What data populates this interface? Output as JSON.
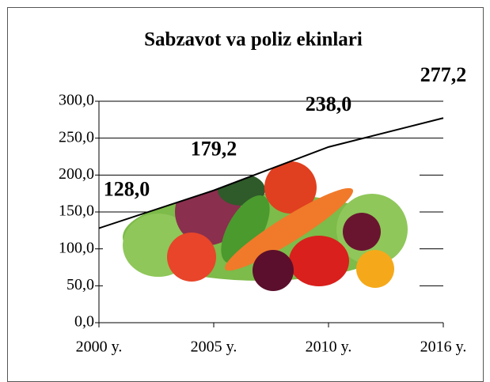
{
  "chart_data": {
    "type": "line",
    "title": "Sabzavot va poliz ekinlari",
    "categories": [
      "2000 y.",
      "2005 y.",
      "2010 y.",
      "2016 y."
    ],
    "values": [
      128.0,
      179.2,
      238.0,
      277.2
    ],
    "value_labels": [
      "128,0",
      "179,2",
      "238,0",
      "277,2"
    ],
    "color": "#000000",
    "ylim": [
      0,
      300
    ],
    "yticks": [
      {
        "value": 0,
        "label": "0,0"
      },
      {
        "value": 50,
        "label": "50,0"
      },
      {
        "value": 100,
        "label": "100,0"
      },
      {
        "value": 150,
        "label": "150,0"
      },
      {
        "value": 200,
        "label": "200,0"
      },
      {
        "value": 250,
        "label": "250,0"
      },
      {
        "value": 300,
        "label": "300,0"
      }
    ],
    "grid": true
  }
}
